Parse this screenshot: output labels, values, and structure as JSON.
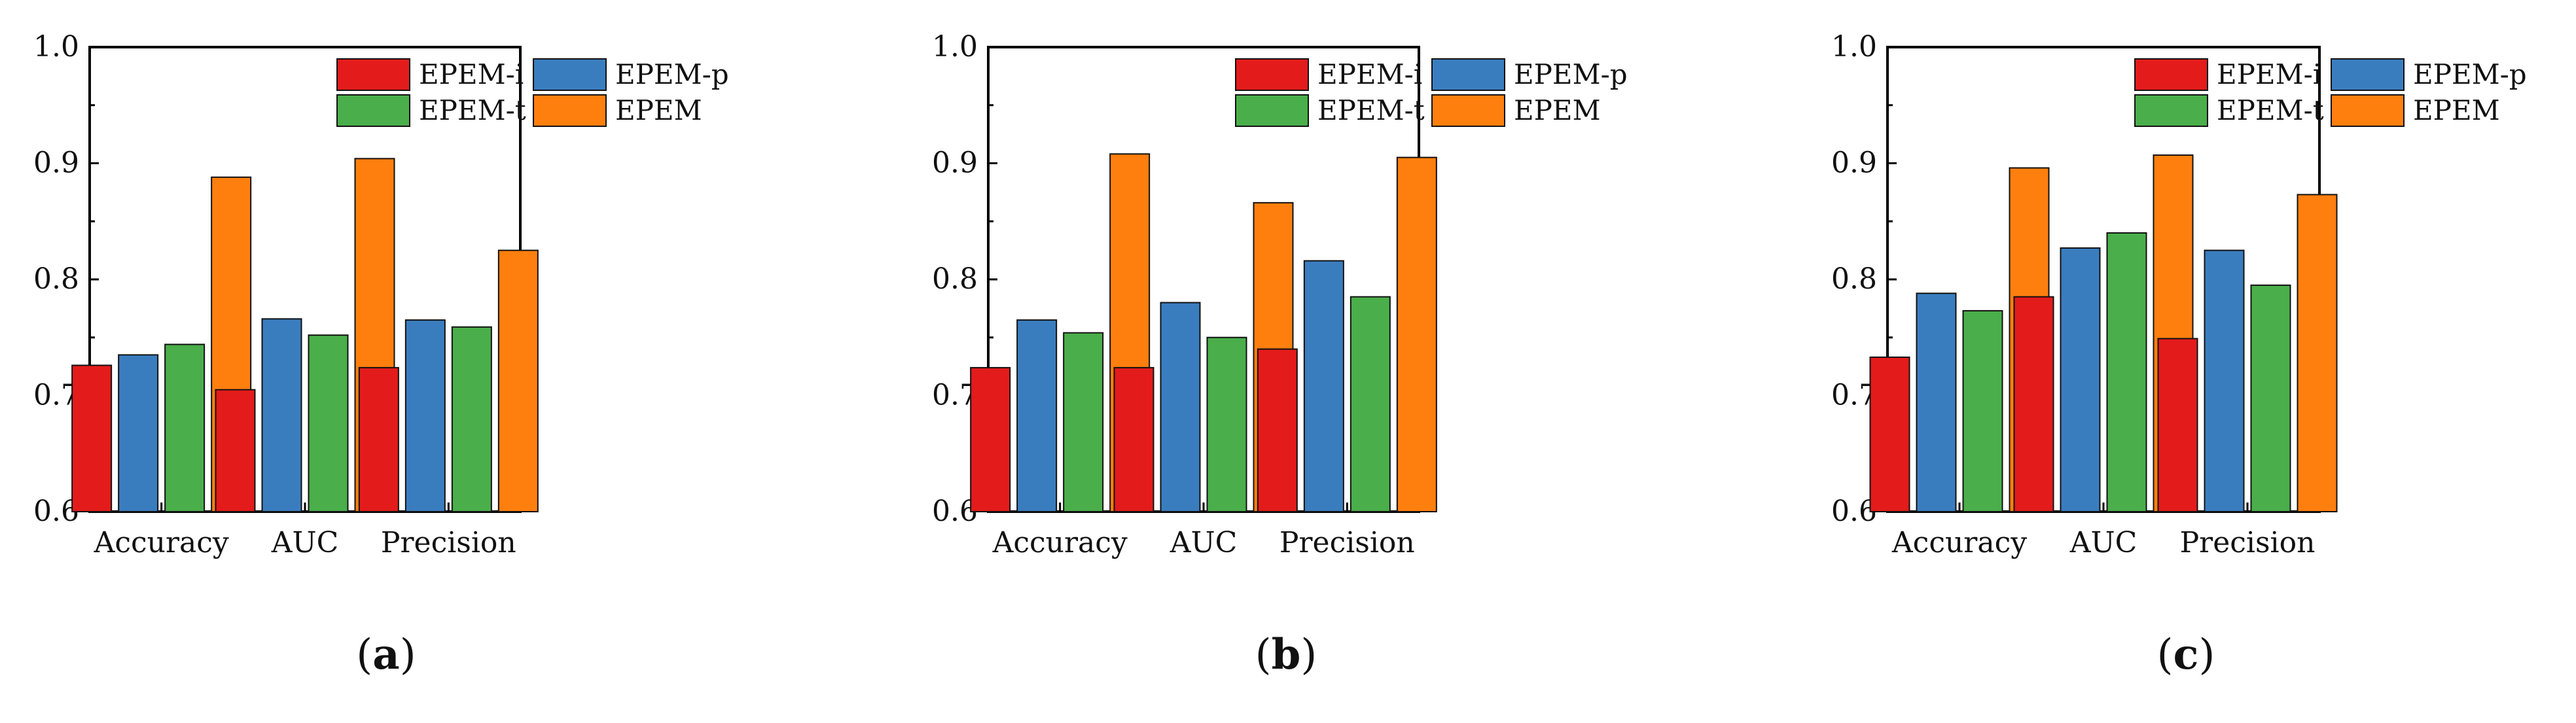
{
  "colors": {
    "EPEM-i": "#e31b1b",
    "EPEM-p": "#3a7dbf",
    "EPEM-t": "#4aae4a",
    "EPEM": "#ff7f0e"
  },
  "chart_data": [
    {
      "type": "bar",
      "panel_label": "a",
      "categories": [
        "Accuracy",
        "AUC",
        "Precision"
      ],
      "series": [
        {
          "name": "EPEM-i",
          "values": [
            0.726,
            0.705,
            0.724
          ]
        },
        {
          "name": "EPEM-p",
          "values": [
            0.735,
            0.766,
            0.765
          ]
        },
        {
          "name": "EPEM-t",
          "values": [
            0.744,
            0.752,
            0.759
          ]
        },
        {
          "name": "EPEM",
          "values": [
            0.888,
            0.904,
            0.825
          ]
        }
      ],
      "yticks": [
        "0.6",
        "0.7",
        "0.8",
        "0.9",
        "1.0"
      ],
      "ylim": [
        0.6,
        1.0
      ],
      "legend_position": "top-right",
      "grid": false
    },
    {
      "type": "bar",
      "panel_label": "b",
      "categories": [
        "Accuracy",
        "AUC",
        "Precision"
      ],
      "series": [
        {
          "name": "EPEM-i",
          "values": [
            0.724,
            0.724,
            0.74
          ]
        },
        {
          "name": "EPEM-p",
          "values": [
            0.765,
            0.78,
            0.816
          ]
        },
        {
          "name": "EPEM-t",
          "values": [
            0.754,
            0.75,
            0.785
          ]
        },
        {
          "name": "EPEM",
          "values": [
            0.908,
            0.866,
            0.905
          ]
        }
      ],
      "yticks": [
        "0.6",
        "0.7",
        "0.8",
        "0.9",
        "1.0"
      ],
      "ylim": [
        0.6,
        1.0
      ],
      "legend_position": "top-right",
      "grid": false
    },
    {
      "type": "bar",
      "panel_label": "c",
      "categories": [
        "Accuracy",
        "AUC",
        "Precision"
      ],
      "series": [
        {
          "name": "EPEM-i",
          "values": [
            0.733,
            0.785,
            0.749
          ]
        },
        {
          "name": "EPEM-p",
          "values": [
            0.788,
            0.827,
            0.825
          ]
        },
        {
          "name": "EPEM-t",
          "values": [
            0.773,
            0.84,
            0.795
          ]
        },
        {
          "name": "EPEM",
          "values": [
            0.896,
            0.907,
            0.873
          ]
        }
      ],
      "yticks": [
        "0.6",
        "0.7",
        "0.8",
        "0.9",
        "1.0"
      ],
      "ylim": [
        0.6,
        1.0
      ],
      "legend_position": "top-right",
      "grid": false
    }
  ]
}
